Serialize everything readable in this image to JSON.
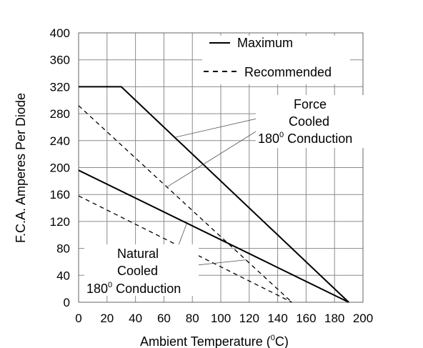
{
  "chart_data": {
    "type": "line",
    "title": "",
    "xlabel": "Ambient Temperature (°C)",
    "ylabel": "F.C.A. Amperes Per Diode",
    "xlim": [
      0,
      200
    ],
    "ylim": [
      0,
      400
    ],
    "xticks": [
      0,
      20,
      40,
      60,
      80,
      100,
      120,
      140,
      160,
      180,
      200
    ],
    "yticks": [
      0,
      40,
      80,
      120,
      160,
      200,
      240,
      280,
      320,
      360,
      400
    ],
    "grid": true,
    "legend_position": "top-right",
    "legend": [
      {
        "label": "Maximum",
        "style": "solid"
      },
      {
        "label": "Recommended",
        "style": "dashed"
      }
    ],
    "series": [
      {
        "group": "Force Cooled",
        "style": "solid",
        "x": [
          0,
          30,
          190
        ],
        "y": [
          320,
          320,
          0
        ]
      },
      {
        "group": "Force Cooled",
        "style": "dashed",
        "x": [
          0,
          150
        ],
        "y": [
          292,
          0
        ]
      },
      {
        "group": "Natural Cooled",
        "style": "solid",
        "x": [
          0,
          190
        ],
        "y": [
          196,
          0
        ]
      },
      {
        "group": "Natural Cooled",
        "style": "dashed",
        "x": [
          0,
          150
        ],
        "y": [
          158,
          0
        ]
      }
    ],
    "annotations": {
      "force": {
        "line1": "Force",
        "line2": "Cooled",
        "line3_num": "180",
        "line3_sup": "0",
        "line3_rest": " Conduction"
      },
      "natural": {
        "line1": "Natural",
        "line2": "Cooled",
        "line3_num": "180",
        "line3_sup": "0",
        "line3_rest": " Conduction"
      }
    },
    "xlabel_parts": {
      "pre": "Ambient Temperature (",
      "sup": "0",
      "post": "C)"
    }
  }
}
